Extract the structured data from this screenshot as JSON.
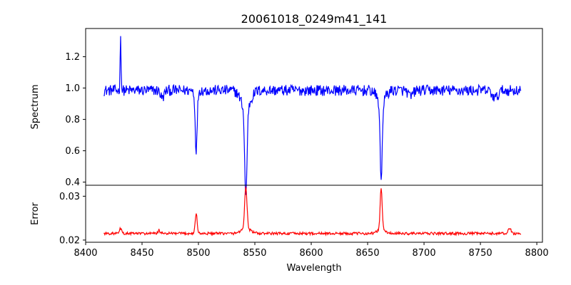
{
  "chart_data": {
    "title": "20061018_0249m41_141",
    "xlabel": "Wavelength",
    "x_ticks": [
      8400,
      8450,
      8500,
      8550,
      8600,
      8650,
      8700,
      8750,
      8800
    ],
    "xlim": [
      8400,
      8805
    ],
    "panels": [
      {
        "type": "line",
        "ylabel": "Spectrum",
        "ylim": [
          0.38,
          1.38
        ],
        "y_ticks": [
          0.4,
          0.6,
          0.8,
          1.0,
          1.2
        ],
        "y_tick_labels": [
          "0.4",
          "0.6",
          "0.8",
          "1.0",
          "1.2"
        ],
        "color": "#0000ff",
        "x_range": [
          8416,
          8786
        ],
        "continuum": 0.985,
        "noise": 0.035,
        "features": [
          {
            "center": 8431,
            "depth": -0.36,
            "width": 0.4
          },
          {
            "center": 8468,
            "depth": 0.05,
            "width": 1.5
          },
          {
            "center": 8498,
            "depth": 0.38,
            "width": 0.9
          },
          {
            "center": 8542,
            "depth": 0.56,
            "width": 1.0
          },
          {
            "center": 8542,
            "depth": 0.12,
            "width": 4.0
          },
          {
            "center": 8662,
            "depth": 0.5,
            "width": 0.9
          },
          {
            "center": 8662,
            "depth": 0.08,
            "width": 3.5
          },
          {
            "center": 8688,
            "depth": 0.04,
            "width": 2.0
          },
          {
            "center": 8763,
            "depth": 0.05,
            "width": 2.5
          }
        ]
      },
      {
        "type": "line",
        "ylabel": "Error",
        "ylim": [
          0.0195,
          0.0325
        ],
        "y_ticks": [
          0.02,
          0.03
        ],
        "y_tick_labels": [
          "0.02",
          "0.03"
        ],
        "color": "#ff0000",
        "x_range": [
          8416,
          8786
        ],
        "continuum": 0.0215,
        "noise": 0.0003,
        "features": [
          {
            "center": 8431,
            "depth": -0.0012,
            "width": 0.8
          },
          {
            "center": 8465,
            "depth": -0.0008,
            "width": 0.8
          },
          {
            "center": 8498,
            "depth": -0.0045,
            "width": 0.9
          },
          {
            "center": 8542,
            "depth": -0.0095,
            "width": 1.0
          },
          {
            "center": 8542,
            "depth": -0.0012,
            "width": 4.0
          },
          {
            "center": 8662,
            "depth": -0.0095,
            "width": 0.9
          },
          {
            "center": 8662,
            "depth": -0.0008,
            "width": 3.5
          },
          {
            "center": 8776,
            "depth": -0.0012,
            "width": 1.2
          }
        ]
      }
    ]
  }
}
